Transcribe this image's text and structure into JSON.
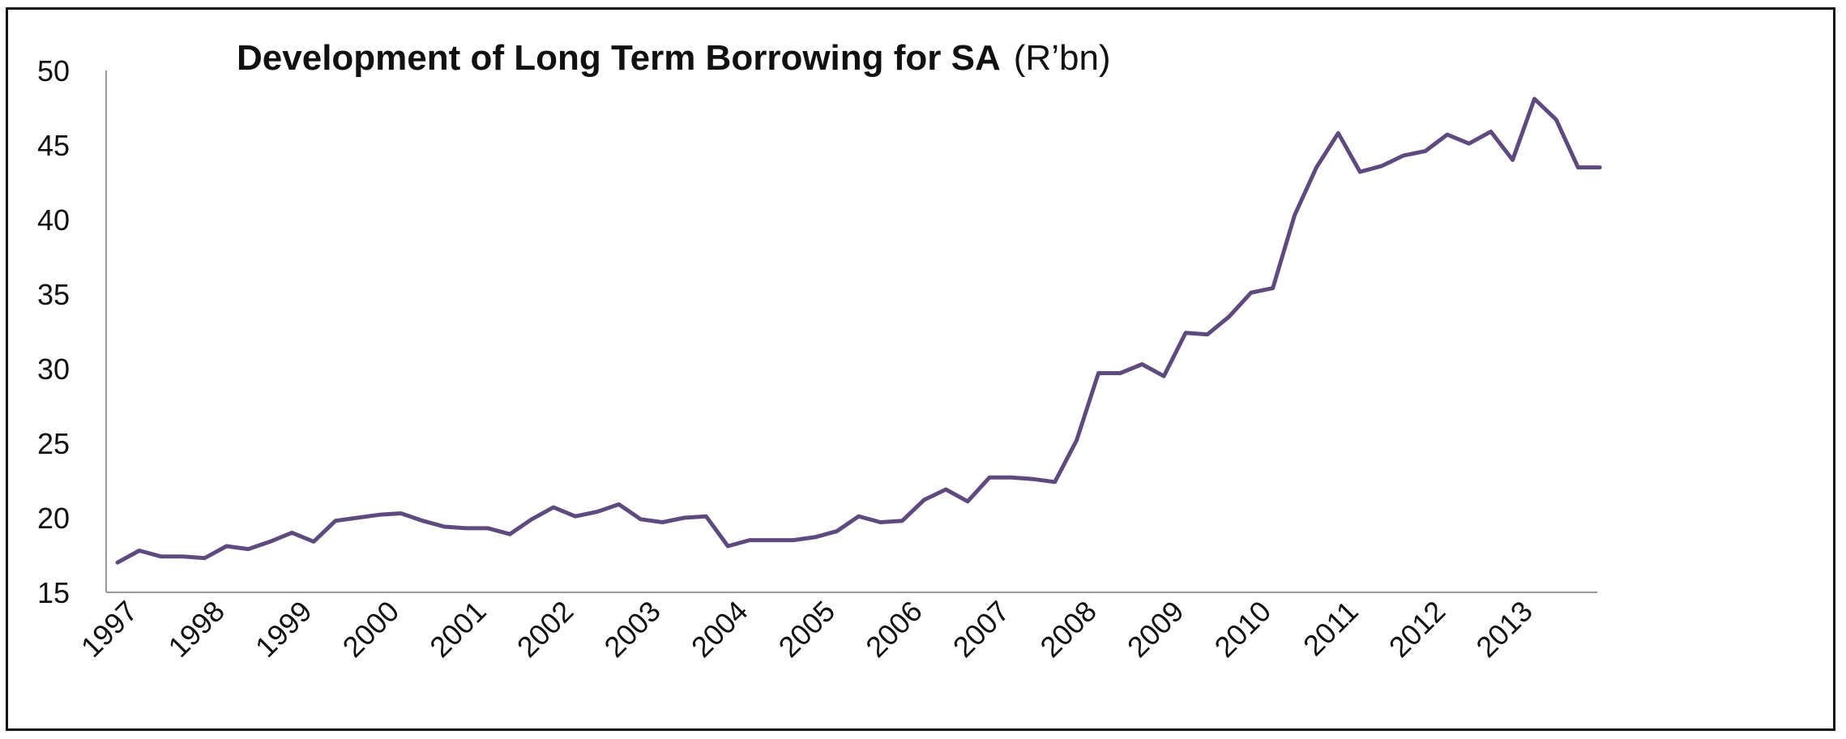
{
  "chart_data": {
    "type": "line",
    "title": "Development of Long Term Borrowing for SA",
    "title_unit": "(R’bn)",
    "xlabel": "",
    "ylabel": "",
    "ylim": [
      15,
      50
    ],
    "yticks": [
      15,
      20,
      25,
      30,
      35,
      40,
      45,
      50
    ],
    "xticks": [
      "1997",
      "1998",
      "1999",
      "2000",
      "2001",
      "2002",
      "2003",
      "2004",
      "2005",
      "2006",
      "2007",
      "2008",
      "2009",
      "2010",
      "2011",
      "2012",
      "2013"
    ],
    "grid": false,
    "legend": "none",
    "line_color": "#5e4a7e",
    "axis_color": "#999999",
    "series": [
      {
        "x": [
          "1997 Q1",
          "1997 Q2",
          "1997 Q3",
          "1997 Q4",
          "1998 Q1",
          "1998 Q2",
          "1998 Q3",
          "1998 Q4",
          "1999 Q1",
          "1999 Q2",
          "1999 Q3",
          "1999 Q4",
          "2000 Q1",
          "2000 Q2",
          "2000 Q3",
          "2000 Q4",
          "2001 Q1",
          "2001 Q2",
          "2001 Q3",
          "2001 Q4",
          "2002 Q1",
          "2002 Q2",
          "2002 Q3",
          "2002 Q4",
          "2003 Q1",
          "2003 Q2",
          "2003 Q3",
          "2003 Q4",
          "2004 Q1",
          "2004 Q2",
          "2004 Q3",
          "2004 Q4",
          "2005 Q1",
          "2005 Q2",
          "2005 Q3",
          "2005 Q4",
          "2006 Q1",
          "2006 Q2",
          "2006 Q3",
          "2006 Q4",
          "2007 Q1",
          "2007 Q2",
          "2007 Q3",
          "2007 Q4",
          "2008 Q1",
          "2008 Q2",
          "2008 Q3",
          "2008 Q4",
          "2009 Q1",
          "2009 Q2",
          "2009 Q3",
          "2009 Q4",
          "2010 Q1",
          "2010 Q2",
          "2010 Q3",
          "2010 Q4",
          "2011 Q1",
          "2011 Q2",
          "2011 Q3",
          "2011 Q4",
          "2012 Q1",
          "2012 Q2",
          "2012 Q3",
          "2012 Q4",
          "2013 Q1",
          "2013 Q2",
          "2013 Q3",
          "2013 Q4",
          "2014 Q1"
        ],
        "values": [
          17.0,
          17.8,
          17.4,
          17.4,
          17.3,
          18.1,
          17.9,
          18.4,
          19.0,
          18.4,
          19.8,
          20.0,
          20.2,
          20.3,
          19.8,
          19.4,
          19.3,
          19.3,
          18.9,
          19.9,
          20.7,
          20.1,
          20.4,
          20.9,
          19.9,
          19.7,
          20.0,
          20.1,
          18.1,
          18.5,
          18.5,
          18.5,
          18.7,
          19.1,
          20.1,
          19.7,
          19.8,
          21.2,
          21.9,
          21.1,
          22.7,
          22.7,
          22.6,
          22.4,
          25.2,
          29.7,
          29.7,
          30.3,
          29.5,
          32.4,
          32.3,
          33.5,
          35.1,
          35.4,
          40.3,
          43.5,
          45.8,
          43.2,
          43.6,
          44.3,
          44.6,
          45.7,
          45.1,
          45.9,
          44.0,
          48.1,
          46.7,
          43.5,
          43.5
        ]
      }
    ]
  }
}
